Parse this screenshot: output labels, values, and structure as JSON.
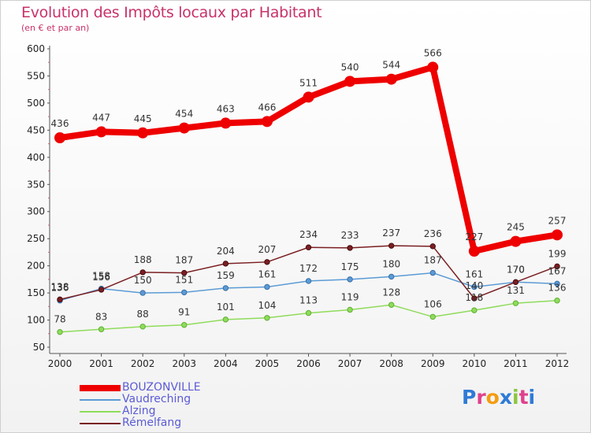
{
  "header": {
    "title": "Evolution des Impôts locaux par Habitant",
    "subtitle": "(en € et par an)"
  },
  "logo": {
    "text": "Proxiti",
    "colors": [
      "#2e7bd6",
      "#e0418c",
      "#f39c12",
      "#2e7bd6",
      "#8cc63f",
      "#e0418c",
      "#2e7bd6"
    ]
  },
  "chart_data": {
    "type": "line",
    "title": "Evolution des Impôts locaux par Habitant",
    "subtitle": "(en € et par an)",
    "categories": [
      "2000",
      "2001",
      "2002",
      "2003",
      "2004",
      "2005",
      "2006",
      "2007",
      "2008",
      "2009",
      "2010",
      "2011",
      "2012"
    ],
    "ylim": [
      50,
      600
    ],
    "yticks": [
      50,
      100,
      150,
      200,
      250,
      300,
      350,
      400,
      450,
      500,
      550,
      600
    ],
    "grid": false,
    "legend_position": "bottom-left",
    "series": [
      {
        "name": "BOUZONVILLE",
        "color": "#ee0000",
        "values": [
          436,
          447,
          445,
          454,
          463,
          466,
          511,
          540,
          544,
          566,
          227,
          245,
          257
        ],
        "labels": [
          "436",
          "447",
          "445",
          "454",
          "463",
          "466",
          "511",
          "540",
          "544",
          "566",
          "227",
          "245",
          "257"
        ]
      },
      {
        "name": "Vaudreching",
        "color": "#5b9bd5",
        "values": [
          136,
          158,
          150,
          151,
          159,
          161,
          172,
          175,
          180,
          187,
          161,
          170,
          167
        ],
        "labels": [
          "136",
          "158",
          "150",
          "151",
          "159",
          "161",
          "172",
          "175",
          "180",
          "187",
          "161",
          "170",
          "167"
        ]
      },
      {
        "name": "Alzing",
        "color": "#8fdc5b",
        "values": [
          78,
          83,
          88,
          91,
          101,
          104,
          113,
          119,
          128,
          106,
          118,
          131,
          136
        ],
        "labels": [
          "78",
          "83",
          "88",
          "91",
          "101",
          "104",
          "113",
          "119",
          "128",
          "106",
          "118",
          "131",
          "136"
        ]
      },
      {
        "name": "Rémelfang",
        "color": "#7a1f22",
        "values": [
          138,
          156,
          188,
          187,
          204,
          207,
          234,
          233,
          237,
          236,
          140,
          170,
          199
        ],
        "labels": [
          "138",
          "156",
          "188",
          "187",
          "204",
          "207",
          "234",
          "233",
          "237",
          "236",
          "140",
          "170",
          "199"
        ]
      }
    ]
  }
}
